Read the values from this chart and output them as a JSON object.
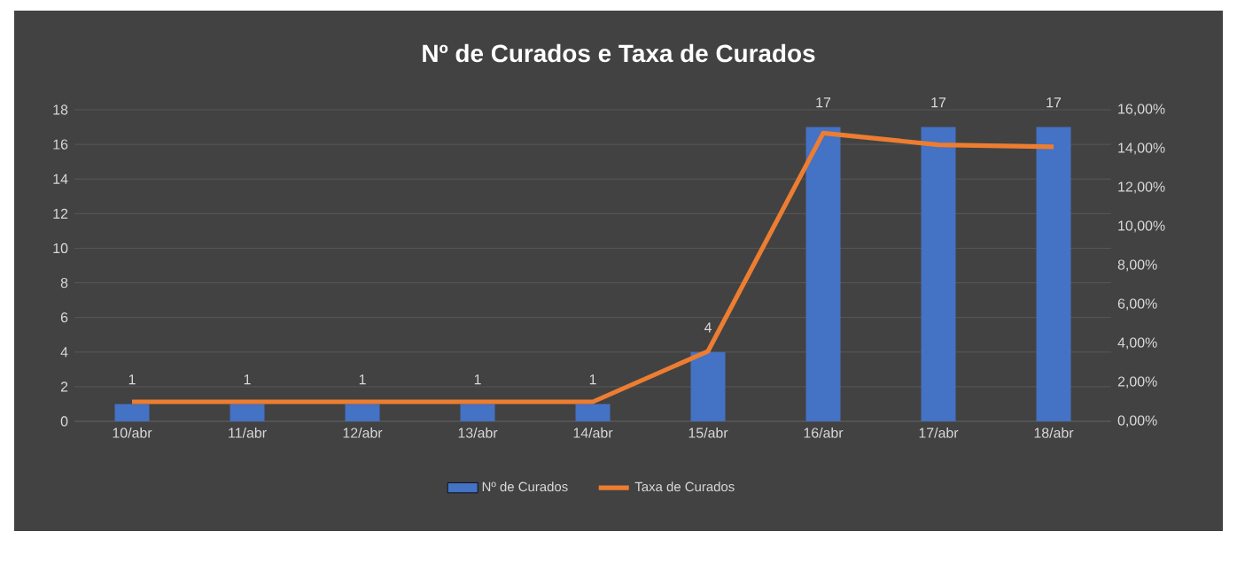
{
  "chart_data": {
    "type": "bar",
    "title": "Nº de Curados e Taxa de Curados",
    "categories": [
      "10/abr",
      "11/abr",
      "12/abr",
      "13/abr",
      "14/abr",
      "15/abr",
      "16/abr",
      "17/abr",
      "18/abr"
    ],
    "series": [
      {
        "name": "Nº de Curados",
        "color": "#4472c4",
        "values": [
          1,
          1,
          1,
          1,
          1,
          4,
          17,
          17,
          17
        ],
        "value_labels": [
          "1",
          "1",
          "1",
          "1",
          "1",
          "4",
          "17",
          "17",
          "17"
        ]
      },
      {
        "name": "Taxa de Curados",
        "type": "line",
        "axis": "y2",
        "color": "#ed7d31",
        "values": [
          1.0,
          1.0,
          1.0,
          1.0,
          1.0,
          3.6,
          14.8,
          14.2,
          14.1
        ]
      }
    ],
    "ylim": [
      0,
      18
    ],
    "yticks": [
      0,
      2,
      4,
      6,
      8,
      10,
      12,
      14,
      16,
      18
    ],
    "y2lim": [
      0,
      16
    ],
    "y2ticks": [
      {
        "value": 0,
        "label": "0,00%"
      },
      {
        "value": 2,
        "label": "2,00%"
      },
      {
        "value": 4,
        "label": "4,00%"
      },
      {
        "value": 6,
        "label": "6,00%"
      },
      {
        "value": 8,
        "label": "8,00%"
      },
      {
        "value": 10,
        "label": "10,00%"
      },
      {
        "value": 12,
        "label": "12,00%"
      },
      {
        "value": 14,
        "label": "14,00%"
      },
      {
        "value": 16,
        "label": "16,00%"
      }
    ],
    "grid": "y",
    "legend": "bottom"
  }
}
